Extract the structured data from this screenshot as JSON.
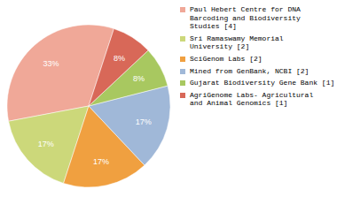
{
  "chart_data": {
    "type": "pie",
    "categories": [
      "Paul Hebert Centre for DNA\nBarcoding and Biodiversity\nStudies [4]",
      "Sri Ramaswamy Memorial\nUniversity [2]",
      "SciGenom Labs [2]",
      "Mined from GenBank, NCBI [2]",
      "Gujarat Biodiversity Gene Bank [1]",
      "AgriGenome Labs- Agricultural\nand Animal Genomics [1]"
    ],
    "values": [
      33,
      17,
      17,
      17,
      8,
      8
    ],
    "value_labels": [
      "33%",
      "17%",
      "17%",
      "17%",
      "8%",
      "8%"
    ],
    "data_labels": true,
    "colors": [
      "#f0a898",
      "#ccd87a",
      "#f0a040",
      "#a0b8d8",
      "#a8c860",
      "#d86858"
    ],
    "legend": "upper right"
  }
}
